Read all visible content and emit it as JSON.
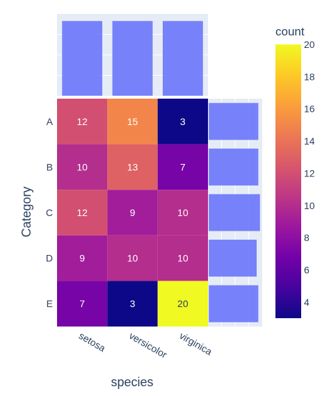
{
  "chart_data": {
    "type": "heatmap",
    "x_title": "species",
    "y_title": "Category",
    "x_categories": [
      "setosa",
      "versicolor",
      "virginica"
    ],
    "y_categories": [
      "A",
      "B",
      "C",
      "D",
      "E"
    ],
    "z": [
      [
        12,
        15,
        3
      ],
      [
        10,
        13,
        7
      ],
      [
        12,
        9,
        10
      ],
      [
        9,
        10,
        10
      ],
      [
        7,
        3,
        20
      ]
    ],
    "colorbar": {
      "title": "count",
      "range": [
        3,
        20
      ],
      "ticks": [
        4,
        6,
        8,
        10,
        12,
        14,
        16,
        18,
        20
      ]
    },
    "colorscale": [
      "#0d0887",
      "#46039f",
      "#7201a8",
      "#9c179e",
      "#bd3786",
      "#d8576b",
      "#ed7953",
      "#fb9f3a",
      "#fdca26",
      "#f0f921"
    ],
    "marginal_x": {
      "type": "histogram",
      "values": [
        50,
        50,
        50
      ]
    },
    "marginal_y": {
      "type": "histogram",
      "values": [
        30,
        30,
        31,
        29,
        30
      ]
    },
    "marginal_color": "#636efa",
    "plot_bg": "#e5ecf6"
  }
}
